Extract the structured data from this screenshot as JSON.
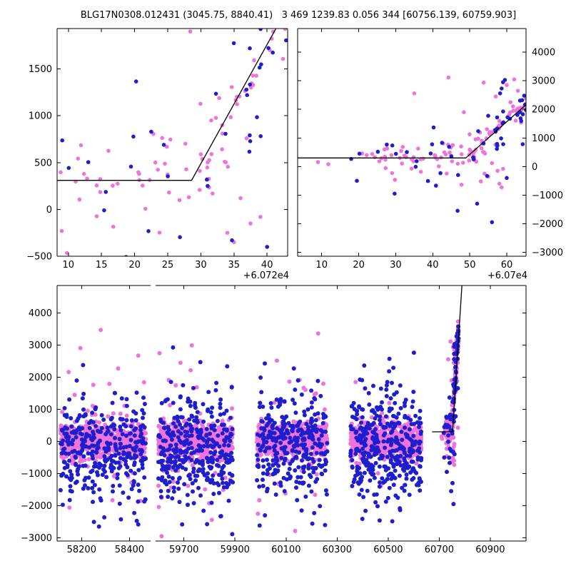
{
  "title": "BLG17N0308.012431 (3045.75, 8840.41)   3 469 1239.83 0.056 344 [60756.139, 60759.903]",
  "chart_data": {
    "type": "scatter",
    "title": "BLG17N0308.012431 (3045.75, 8840.41)   3 469 1239.83 0.056 344 [60756.139, 60759.903]",
    "colors": {
      "pink": "#ee73da",
      "blue": "#1e1ecd",
      "model_line": "#000000",
      "axis": "#000000",
      "background": "#ffffff"
    },
    "font_size": 13,
    "legend": "none",
    "grid": false,
    "panels": [
      {
        "id": "event-zoom-narrow",
        "rect": {
          "l": 80,
          "t": 40,
          "r": 403,
          "b": 359
        },
        "xlim": [
          8.3,
          43.1
        ],
        "ylim": [
          -500,
          1931
        ],
        "xticks": [
          10,
          15,
          20,
          25,
          30,
          35,
          40
        ],
        "yticks": [
          -500,
          0,
          500,
          1000,
          1500
        ],
        "ylabel_side": "left",
        "x_offset_label": "+6.072e4",
        "x_base": 60720,
        "marker_radius": 2.8,
        "spines": [
          "left",
          "right",
          "top",
          "bottom"
        ],
        "model_line": [
          [
            8.3,
            310
          ],
          [
            28.6,
            310
          ],
          [
            41.8,
            1990
          ]
        ],
        "series": [
          "event"
        ]
      },
      {
        "id": "event-zoom-wide",
        "rect": {
          "l": 417,
          "t": 40,
          "r": 737,
          "b": 359
        },
        "xlim": [
          3.5,
          65.2
        ],
        "ylim": [
          -3142,
          4830
        ],
        "xticks": [
          10,
          20,
          30,
          40,
          50,
          60
        ],
        "yticks": [
          -3000,
          -2000,
          -1000,
          0,
          1000,
          2000,
          3000,
          4000
        ],
        "ylabel_side": "right",
        "x_offset_label": "+6.07e4",
        "x_base": 60700,
        "marker_radius": 2.8,
        "spines": [
          "left",
          "right",
          "top",
          "bottom"
        ],
        "model_line": [
          [
            3.5,
            300
          ],
          [
            48.9,
            300
          ],
          [
            65.2,
            2165
          ]
        ],
        "series": [
          "event"
        ]
      },
      {
        "id": "full-lightcurve-left",
        "rect": {
          "l": 80,
          "t": 400,
          "r": 211,
          "b": 758
        },
        "xlim": [
          58098,
          58488
        ],
        "ylim": [
          -3105,
          4860
        ],
        "xticks": [
          58200,
          58400
        ],
        "yticks": [
          -3000,
          -2000,
          -1000,
          0,
          1000,
          2000,
          3000,
          4000
        ],
        "ylabel_side": "left",
        "x_base": 0,
        "marker_radius": 3,
        "spines": [
          "left",
          "top",
          "bottom"
        ],
        "series": [
          "season2018"
        ]
      },
      {
        "id": "full-lightcurve-right",
        "rect": {
          "l": 218,
          "t": 400,
          "r": 737,
          "b": 758
        },
        "xlim": [
          59589,
          61040
        ],
        "ylim": [
          -3105,
          4860
        ],
        "xticks": [
          59700,
          59900,
          60100,
          60300,
          60500,
          60700,
          60900
        ],
        "yticks": [
          -3000,
          -2000,
          -1000,
          0,
          1000,
          2000,
          3000,
          4000
        ],
        "ylabel_side": "none",
        "x_base": 0,
        "marker_radius": 3,
        "spines": [
          "right",
          "top",
          "bottom"
        ],
        "model_line": [
          [
            60672,
            300
          ],
          [
            60752,
            300
          ],
          [
            60789,
            4870
          ]
        ],
        "series": [
          "season2122",
          "season2223",
          "season2324",
          "event"
        ]
      }
    ],
    "event_model": {
      "t0": 60748.6,
      "baseline": 300,
      "slope": 117
    },
    "series_defs": {
      "event": {
        "seed": 7,
        "n": 215,
        "t_range": [
          60704,
          60776
        ],
        "t_pow": 0.5,
        "pink_frac": 0.68,
        "use_model": true,
        "pink": {
          "mean": 0,
          "sigma": 260,
          "outlier_frac": 0.05,
          "outlier_sigma": 1100
        },
        "blue": {
          "mean": 0,
          "sigma": 430,
          "outlier_frac": 0.07,
          "outlier_sigma": 1300
        },
        "extras_pink": [
          [
            60735,
            2560
          ],
          [
            60748.4,
            1900
          ],
          [
            60757,
            2450
          ],
          [
            60760,
            2850
          ],
          [
            60762,
            3050
          ],
          [
            60763,
            2650
          ],
          [
            60761,
            2250
          ],
          [
            60729,
            -230
          ],
          [
            60755,
            -350
          ],
          [
            60757.5,
            -150
          ],
          [
            60753,
            -520
          ],
          [
            60759,
            -80
          ],
          [
            60756,
            120
          ],
          [
            60758,
            -600
          ],
          [
            60754,
            -250
          ]
        ],
        "extras_blue": [
          [
            60746.7,
            -1550
          ],
          [
            60729.7,
            -950
          ],
          [
            60754.7,
            -330
          ],
          [
            60759,
            2950
          ],
          [
            60759.5,
            3030
          ],
          [
            60758.6,
            2730
          ],
          [
            60758.2,
            2560
          ],
          [
            60756,
            -1950
          ],
          [
            60760,
            -400
          ],
          [
            60752,
            -1300
          ]
        ]
      },
      "season2018": {
        "seed": 11,
        "t_range": [
          58112,
          58468
        ],
        "pink": {
          "n": 680,
          "mean": 40,
          "sigma": 255,
          "outlier_frac": 0.05,
          "outlier_sigma": 1400
        },
        "blue": {
          "n": 340,
          "mean": -180,
          "sigma": 700,
          "outlier_frac": 0.12,
          "outlier_sigma": 1600
        }
      },
      "season2122": {
        "seed": 12,
        "t_range": [
          59600,
          59892
        ],
        "pink": {
          "n": 640,
          "mean": 30,
          "sigma": 260,
          "outlier_frac": 0.05,
          "outlier_sigma": 1400
        },
        "blue": {
          "n": 360,
          "mean": -150,
          "sigma": 780,
          "outlier_frac": 0.13,
          "outlier_sigma": 1600
        }
      },
      "season2223": {
        "seed": 13,
        "t_range": [
          59985,
          60262
        ],
        "pink": {
          "n": 620,
          "mean": 30,
          "sigma": 255,
          "outlier_frac": 0.05,
          "outlier_sigma": 1400
        },
        "blue": {
          "n": 330,
          "mean": -160,
          "sigma": 760,
          "outlier_frac": 0.13,
          "outlier_sigma": 1600
        }
      },
      "season2324": {
        "seed": 14,
        "t_range": [
          60352,
          60630
        ],
        "pink": {
          "n": 640,
          "mean": 20,
          "sigma": 260,
          "outlier_frac": 0.05,
          "outlier_sigma": 1400
        },
        "blue": {
          "n": 380,
          "mean": -200,
          "sigma": 820,
          "outlier_frac": 0.13,
          "outlier_sigma": 1600
        }
      }
    }
  }
}
